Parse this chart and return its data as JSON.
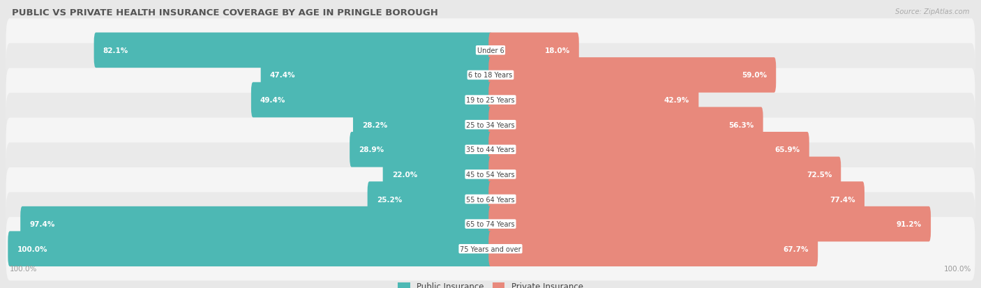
{
  "title": "PUBLIC VS PRIVATE HEALTH INSURANCE COVERAGE BY AGE IN PRINGLE BOROUGH",
  "source": "Source: ZipAtlas.com",
  "categories": [
    "Under 6",
    "6 to 18 Years",
    "19 to 25 Years",
    "25 to 34 Years",
    "35 to 44 Years",
    "45 to 54 Years",
    "55 to 64 Years",
    "65 to 74 Years",
    "75 Years and over"
  ],
  "public_values": [
    82.1,
    47.4,
    49.4,
    28.2,
    28.9,
    22.0,
    25.2,
    97.4,
    100.0
  ],
  "private_values": [
    18.0,
    59.0,
    42.9,
    56.3,
    65.9,
    72.5,
    77.4,
    91.2,
    67.7
  ],
  "public_color": "#4db8b4",
  "private_color": "#e8897c",
  "background_color": "#e8e8e8",
  "row_colors": [
    "#f5f5f5",
    "#eaeaea"
  ],
  "title_color": "#555555",
  "label_color": "#444444",
  "value_color_inside": "#ffffff",
  "value_color_outside": "#555555",
  "axis_label_color": "#999999",
  "legend_public": "Public Insurance",
  "legend_private": "Private Insurance",
  "inside_threshold": 12
}
